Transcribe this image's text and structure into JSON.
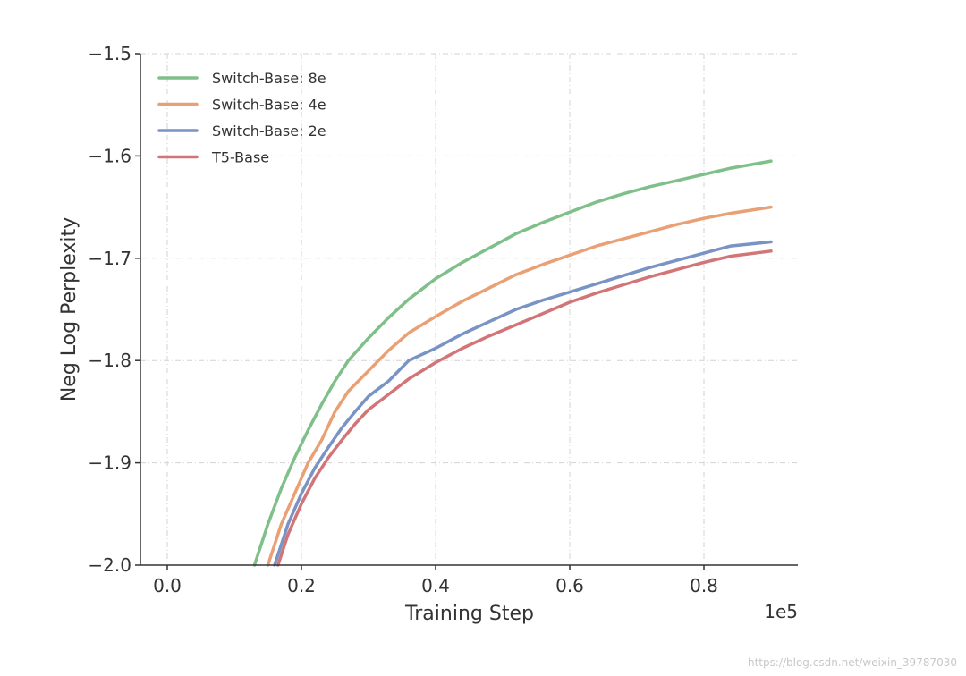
{
  "chart_data": {
    "type": "line",
    "xlabel": "Training Step",
    "ylabel": "Neg Log Perplexity",
    "x_scale_label": "1e5",
    "xlim": [
      -0.04,
      0.94
    ],
    "ylim": [
      -2.0,
      -1.5
    ],
    "x_ticks": [
      0.0,
      0.2,
      0.4,
      0.6,
      0.8
    ],
    "x_tick_labels": [
      "0.0",
      "0.2",
      "0.4",
      "0.6",
      "0.8"
    ],
    "y_ticks": [
      -2.0,
      -1.9,
      -1.8,
      -1.7,
      -1.6,
      -1.5
    ],
    "y_tick_labels": [
      "−2.0",
      "−1.9",
      "−1.8",
      "−1.7",
      "−1.6",
      "−1.5"
    ],
    "grid": true,
    "legend_position": "top-left",
    "series": [
      {
        "name": "Switch-Base: 8e",
        "color": "#7fbf8a",
        "x": [
          0.13,
          0.15,
          0.17,
          0.19,
          0.21,
          0.23,
          0.25,
          0.27,
          0.3,
          0.33,
          0.36,
          0.4,
          0.44,
          0.48,
          0.52,
          0.56,
          0.6,
          0.64,
          0.68,
          0.72,
          0.76,
          0.8,
          0.84,
          0.9
        ],
        "y": [
          -2.0,
          -1.96,
          -1.925,
          -1.895,
          -1.868,
          -1.843,
          -1.82,
          -1.8,
          -1.778,
          -1.758,
          -1.74,
          -1.72,
          -1.704,
          -1.69,
          -1.676,
          -1.665,
          -1.655,
          -1.645,
          -1.637,
          -1.63,
          -1.624,
          -1.618,
          -1.612,
          -1.605
        ]
      },
      {
        "name": "Switch-Base: 4e",
        "color": "#e9a074",
        "x": [
          0.15,
          0.17,
          0.19,
          0.21,
          0.23,
          0.25,
          0.27,
          0.3,
          0.33,
          0.36,
          0.4,
          0.44,
          0.48,
          0.52,
          0.56,
          0.6,
          0.64,
          0.68,
          0.72,
          0.76,
          0.8,
          0.84,
          0.9
        ],
        "y": [
          -2.0,
          -1.96,
          -1.93,
          -1.9,
          -1.878,
          -1.85,
          -1.83,
          -1.81,
          -1.79,
          -1.773,
          -1.757,
          -1.742,
          -1.729,
          -1.716,
          -1.706,
          -1.697,
          -1.688,
          -1.681,
          -1.674,
          -1.667,
          -1.661,
          -1.656,
          -1.65
        ]
      },
      {
        "name": "Switch-Base: 2e",
        "color": "#7893c4",
        "x": [
          0.16,
          0.18,
          0.2,
          0.22,
          0.24,
          0.26,
          0.28,
          0.3,
          0.33,
          0.36,
          0.4,
          0.44,
          0.48,
          0.52,
          0.56,
          0.6,
          0.64,
          0.68,
          0.72,
          0.76,
          0.8,
          0.84,
          0.9
        ],
        "y": [
          -2.0,
          -1.96,
          -1.93,
          -1.905,
          -1.885,
          -1.866,
          -1.85,
          -1.835,
          -1.82,
          -1.8,
          -1.788,
          -1.774,
          -1.762,
          -1.75,
          -1.741,
          -1.733,
          -1.725,
          -1.717,
          -1.709,
          -1.702,
          -1.695,
          -1.688,
          -1.684
        ]
      },
      {
        "name": "T5-Base",
        "color": "#d27577",
        "x": [
          0.165,
          0.18,
          0.2,
          0.22,
          0.24,
          0.26,
          0.28,
          0.3,
          0.33,
          0.36,
          0.4,
          0.44,
          0.48,
          0.52,
          0.56,
          0.6,
          0.64,
          0.68,
          0.72,
          0.76,
          0.8,
          0.84,
          0.9
        ],
        "y": [
          -2.0,
          -1.97,
          -1.94,
          -1.915,
          -1.895,
          -1.878,
          -1.862,
          -1.848,
          -1.833,
          -1.818,
          -1.802,
          -1.788,
          -1.776,
          -1.765,
          -1.754,
          -1.743,
          -1.734,
          -1.726,
          -1.718,
          -1.711,
          -1.704,
          -1.698,
          -1.693
        ]
      }
    ]
  },
  "watermark": "https://blog.csdn.net/weixin_39787030"
}
